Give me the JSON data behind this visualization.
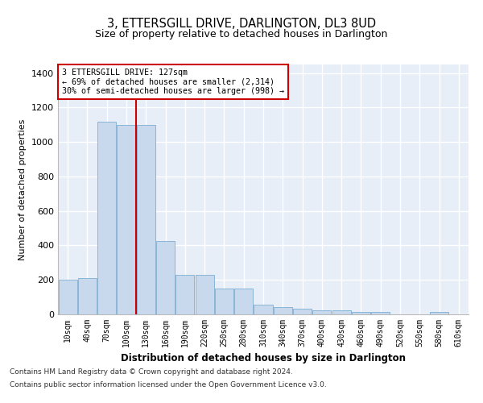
{
  "title": "3, ETTERSGILL DRIVE, DARLINGTON, DL3 8UD",
  "subtitle": "Size of property relative to detached houses in Darlington",
  "xlabel": "Distribution of detached houses by size in Darlington",
  "ylabel": "Number of detached properties",
  "bar_color": "#c8d9ee",
  "bar_edge_color": "#7bafd4",
  "background_color": "#e8eef8",
  "grid_color": "#ffffff",
  "fig_background": "#ffffff",
  "categories": [
    "10sqm",
    "40sqm",
    "70sqm",
    "100sqm",
    "130sqm",
    "160sqm",
    "190sqm",
    "220sqm",
    "250sqm",
    "280sqm",
    "310sqm",
    "340sqm",
    "370sqm",
    "400sqm",
    "430sqm",
    "460sqm",
    "490sqm",
    "520sqm",
    "550sqm",
    "580sqm",
    "610sqm"
  ],
  "values": [
    200,
    210,
    1120,
    1100,
    1100,
    425,
    230,
    230,
    148,
    148,
    57,
    40,
    35,
    24,
    24,
    15,
    15,
    0,
    0,
    12,
    0
  ],
  "ylim": [
    0,
    1450
  ],
  "yticks": [
    0,
    200,
    400,
    600,
    800,
    1000,
    1200,
    1400
  ],
  "vline_x_index": 4,
  "annotation_text": "3 ETTERSGILL DRIVE: 127sqm\n← 69% of detached houses are smaller (2,314)\n30% of semi-detached houses are larger (998) →",
  "annotation_box_color": "#ffffff",
  "annotation_border_color": "#cc0000",
  "footnote1": "Contains HM Land Registry data © Crown copyright and database right 2024.",
  "footnote2": "Contains public sector information licensed under the Open Government Licence v3.0."
}
